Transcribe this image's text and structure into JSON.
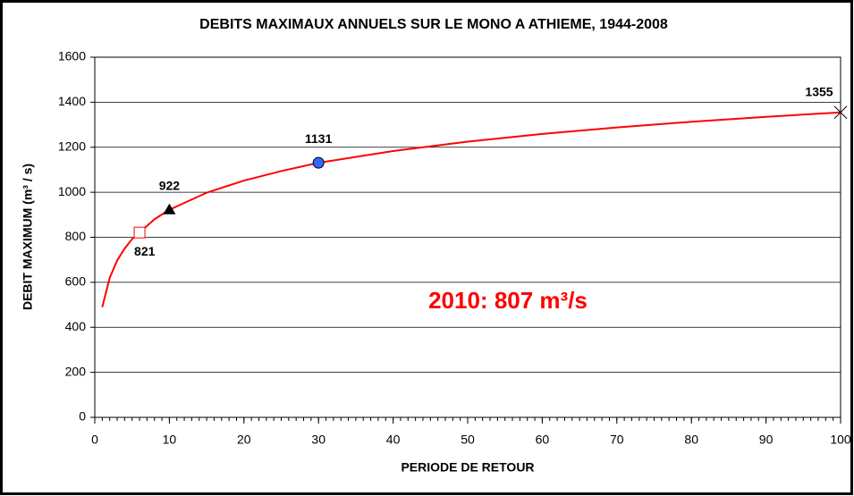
{
  "chart_data": {
    "type": "line",
    "title": "DEBITS MAXIMAUX ANNUELS SUR LE MONO A ATHIEME, 1944-2008",
    "x_label": "PERIODE DE RETOUR",
    "y_label": "DEBIT MAXIMUM (m³ / s)",
    "annotation": "2010: 807 m³/s",
    "annotation_color": "#ff0000",
    "x": [
      1,
      2,
      3,
      4,
      5,
      6,
      8,
      10,
      15,
      20,
      25,
      30,
      40,
      50,
      60,
      70,
      80,
      90,
      100
    ],
    "series": [
      {
        "color": "#ff0000",
        "values": [
          490,
          620,
          697,
          750,
          792,
          821,
          880,
          922,
          998,
          1052,
          1094,
          1131,
          1183,
          1225,
          1259,
          1288,
          1313,
          1335,
          1355
        ]
      }
    ],
    "markers": [
      {
        "x": 6,
        "y": 821,
        "marker": "square",
        "color": "#ff0000",
        "position": "below"
      },
      {
        "x": 10,
        "y": 922,
        "marker": "triangle",
        "color": "#000000",
        "position": "above"
      },
      {
        "x": 30,
        "y": 1131,
        "marker": "circle",
        "color": "#3366ff",
        "position": "above"
      },
      {
        "x": 100,
        "y": 1355,
        "marker": "star",
        "color": "#000000",
        "position": "above-left"
      }
    ],
    "xlim": [
      0,
      100
    ],
    "xticks": [
      0,
      10,
      20,
      30,
      40,
      50,
      60,
      70,
      80,
      90,
      100
    ],
    "xminorticks": [
      0,
      1,
      2,
      3,
      4,
      5,
      6,
      7,
      8,
      9,
      10,
      11,
      12,
      13,
      14,
      15,
      16,
      17,
      18,
      19,
      20,
      21,
      22,
      23,
      24,
      25,
      26,
      27,
      28,
      29,
      30,
      31,
      32,
      33,
      34,
      35,
      36,
      37,
      38,
      39,
      40,
      41,
      42,
      43,
      44,
      45,
      46,
      47,
      48,
      49,
      50,
      51,
      52,
      53,
      54,
      55,
      56,
      57,
      58,
      59,
      60,
      61,
      62,
      63,
      64,
      65,
      66,
      67,
      68,
      69,
      70,
      71,
      72,
      73,
      74,
      75,
      76,
      77,
      78,
      79,
      80,
      81,
      82,
      83,
      84,
      85,
      86,
      87,
      88,
      89,
      90,
      91,
      92,
      93,
      94,
      95,
      96,
      97,
      98,
      99,
      100
    ],
    "ylim": [
      0,
      1600
    ],
    "yticks": [
      0,
      200,
      400,
      600,
      800,
      1000,
      1200,
      1400,
      1600
    ],
    "grid": true
  }
}
